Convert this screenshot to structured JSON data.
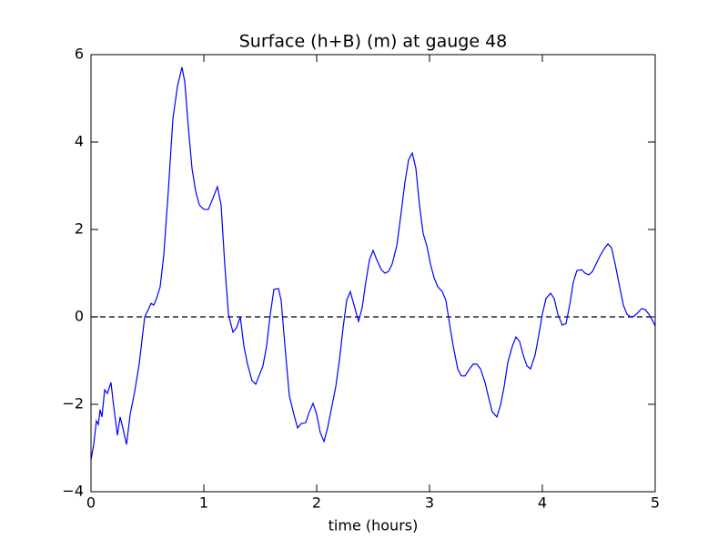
{
  "chart_data": {
    "type": "line",
    "title": "Surface (h+B) (m) at gauge 48",
    "x_label": "time (hours)",
    "xlim": [
      0,
      5
    ],
    "ylim": [
      -4,
      6
    ],
    "xticks": [
      0,
      1,
      2,
      3,
      4,
      5
    ],
    "yticks": [
      {
        "value": -4,
        "label": "−4"
      },
      {
        "value": -2,
        "label": "−2"
      },
      0,
      2,
      4,
      6
    ],
    "reference_line": 0,
    "reference_line_style": "dashed",
    "reference_line_color": "#000000",
    "grid": false,
    "series": [
      {
        "color": "#0000ff",
        "x": [
          0,
          0.024,
          0.048,
          0.065,
          0.081,
          0.097,
          0.121,
          0.145,
          0.177,
          0.2,
          0.234,
          0.258,
          0.282,
          0.315,
          0.347,
          0.387,
          0.427,
          0.476,
          0.508,
          0.532,
          0.556,
          0.581,
          0.613,
          0.645,
          0.685,
          0.726,
          0.766,
          0.806,
          0.831,
          0.863,
          0.895,
          0.927,
          0.96,
          1.0,
          1.04,
          1.08,
          1.12,
          1.153,
          1.185,
          1.218,
          1.258,
          1.29,
          1.323,
          1.355,
          1.387,
          1.427,
          1.46,
          1.492,
          1.524,
          1.556,
          1.589,
          1.621,
          1.661,
          1.685,
          1.726,
          1.758,
          1.798,
          1.831,
          1.863,
          1.903,
          1.935,
          1.968,
          2.0,
          2.032,
          2.065,
          2.097,
          2.129,
          2.169,
          2.202,
          2.234,
          2.266,
          2.298,
          2.331,
          2.371,
          2.403,
          2.435,
          2.468,
          2.5,
          2.532,
          2.573,
          2.605,
          2.637,
          2.669,
          2.71,
          2.742,
          2.782,
          2.815,
          2.847,
          2.879,
          2.911,
          2.944,
          2.976,
          3.008,
          3.04,
          3.073,
          3.113,
          3.145,
          3.177,
          3.21,
          3.25,
          3.282,
          3.315,
          3.355,
          3.387,
          3.419,
          3.452,
          3.492,
          3.524,
          3.556,
          3.597,
          3.629,
          3.661,
          3.694,
          3.734,
          3.766,
          3.798,
          3.831,
          3.863,
          3.895,
          3.935,
          3.968,
          4.0,
          4.032,
          4.073,
          4.105,
          4.137,
          4.177,
          4.21,
          4.242,
          4.274,
          4.306,
          4.347,
          4.379,
          4.411,
          4.444,
          4.476,
          4.508,
          4.548,
          4.581,
          4.613,
          4.645,
          4.685,
          4.718,
          4.75,
          4.782,
          4.815,
          4.847,
          4.879,
          4.911,
          4.944,
          4.976,
          5.0
        ],
        "values": [
          -3.27,
          -2.92,
          -2.38,
          -2.46,
          -2.12,
          -2.29,
          -1.67,
          -1.75,
          -1.5,
          -2.02,
          -2.71,
          -2.29,
          -2.54,
          -2.92,
          -2.23,
          -1.71,
          -1.08,
          0,
          0.17,
          0.31,
          0.27,
          0.42,
          0.69,
          1.42,
          2.88,
          4.54,
          5.27,
          5.71,
          5.38,
          4.33,
          3.4,
          2.88,
          2.56,
          2.46,
          2.46,
          2.71,
          2.98,
          2.56,
          1.21,
          0.06,
          -0.35,
          -0.25,
          0,
          -0.67,
          -1.08,
          -1.46,
          -1.54,
          -1.33,
          -1.12,
          -0.67,
          0.06,
          0.63,
          0.65,
          0.38,
          -0.88,
          -1.81,
          -2.23,
          -2.54,
          -2.44,
          -2.42,
          -2.17,
          -1.98,
          -2.23,
          -2.65,
          -2.85,
          -2.54,
          -2.12,
          -1.6,
          -0.98,
          -0.25,
          0.38,
          0.58,
          0.27,
          -0.1,
          0.21,
          0.79,
          1.31,
          1.52,
          1.31,
          1.08,
          1.0,
          1.04,
          1.21,
          1.63,
          2.25,
          3.08,
          3.6,
          3.75,
          3.4,
          2.56,
          1.9,
          1.63,
          1.21,
          0.9,
          0.69,
          0.58,
          0.38,
          -0.15,
          -0.67,
          -1.19,
          -1.35,
          -1.35,
          -1.19,
          -1.08,
          -1.08,
          -1.19,
          -1.5,
          -1.85,
          -2.17,
          -2.29,
          -2.02,
          -1.6,
          -1.04,
          -0.67,
          -0.46,
          -0.56,
          -0.88,
          -1.12,
          -1.19,
          -0.88,
          -0.42,
          0.06,
          0.42,
          0.54,
          0.42,
          0.06,
          -0.19,
          -0.15,
          0.27,
          0.79,
          1.06,
          1.08,
          1.0,
          0.96,
          1.04,
          1.21,
          1.38,
          1.56,
          1.67,
          1.58,
          1.21,
          0.69,
          0.27,
          0.06,
          0,
          0.02,
          0.1,
          0.19,
          0.17,
          0.06,
          -0.08,
          -0.21
        ]
      }
    ]
  }
}
